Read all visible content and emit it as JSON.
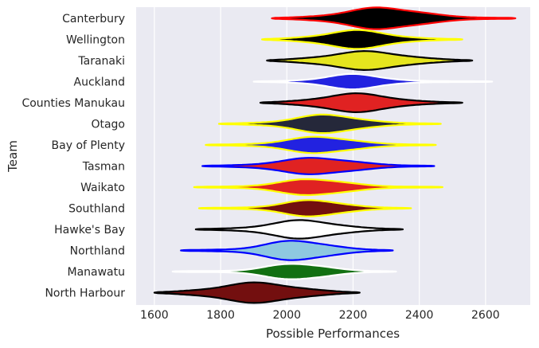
{
  "chart_data": {
    "type": "violin",
    "title": "",
    "xlabel": "Possible Performances",
    "ylabel": "Team",
    "xlim": [
      1545,
      2735
    ],
    "xticks": [
      1600,
      1800,
      2000,
      2200,
      2400,
      2600
    ],
    "grid": true,
    "style": {
      "plot_bg": "#eaeaf2",
      "grid_color": "#ffffff"
    },
    "teams": [
      {
        "name": "Canterbury",
        "fill": "#000000",
        "line": "#ff0000",
        "min": 1955,
        "max": 2690,
        "center": 2290,
        "spread": 110,
        "max_half": 13
      },
      {
        "name": "Wellington",
        "fill": "#000000",
        "line": "#ffff00",
        "min": 1925,
        "max": 2530,
        "center": 2210,
        "spread": 95,
        "max_half": 11
      },
      {
        "name": "Taranaki",
        "fill": "#e5e51e",
        "line": "#000000",
        "min": 1940,
        "max": 2560,
        "center": 2240,
        "spread": 110,
        "max_half": 11
      },
      {
        "name": "Auckland",
        "fill": "#2222e0",
        "line": "#ffffff",
        "min": 1900,
        "max": 2620,
        "center": 2200,
        "spread": 85,
        "max_half": 9
      },
      {
        "name": "Counties Manukau",
        "fill": "#e02222",
        "line": "#000000",
        "min": 1920,
        "max": 2530,
        "center": 2210,
        "spread": 100,
        "max_half": 11
      },
      {
        "name": "Otago",
        "fill": "#25283a",
        "line": "#ffff00",
        "min": 1795,
        "max": 2465,
        "center": 2120,
        "spread": 95,
        "max_half": 11
      },
      {
        "name": "Bay of Plenty",
        "fill": "#2222e0",
        "line": "#ffff00",
        "min": 1755,
        "max": 2450,
        "center": 2100,
        "spread": 95,
        "max_half": 10
      },
      {
        "name": "Tasman",
        "fill": "#e02222",
        "line": "#0000ff",
        "min": 1745,
        "max": 2445,
        "center": 2090,
        "spread": 105,
        "max_half": 10
      },
      {
        "name": "Waikato",
        "fill": "#e02222",
        "line": "#ffff00",
        "min": 1720,
        "max": 2470,
        "center": 2080,
        "spread": 95,
        "max_half": 10
      },
      {
        "name": "Southland",
        "fill": "#730f0f",
        "line": "#ffff00",
        "min": 1735,
        "max": 2375,
        "center": 2080,
        "spread": 85,
        "max_half": 10
      },
      {
        "name": "Hawke's Bay",
        "fill": "#ffffff",
        "line": "#000000",
        "min": 1725,
        "max": 2350,
        "center": 2050,
        "spread": 95,
        "max_half": 11
      },
      {
        "name": "Northland",
        "fill": "#8ec8e0",
        "line": "#0000ff",
        "min": 1680,
        "max": 2320,
        "center": 2030,
        "spread": 90,
        "max_half": 12
      },
      {
        "name": "Manawatu",
        "fill": "#127012",
        "line": "#ffffff",
        "min": 1655,
        "max": 2330,
        "center": 2030,
        "spread": 85,
        "max_half": 10
      },
      {
        "name": "North Harbour",
        "fill": "#730f0f",
        "line": "#000000",
        "min": 1600,
        "max": 2220,
        "center": 1910,
        "spread": 110,
        "max_half": 12
      }
    ]
  }
}
